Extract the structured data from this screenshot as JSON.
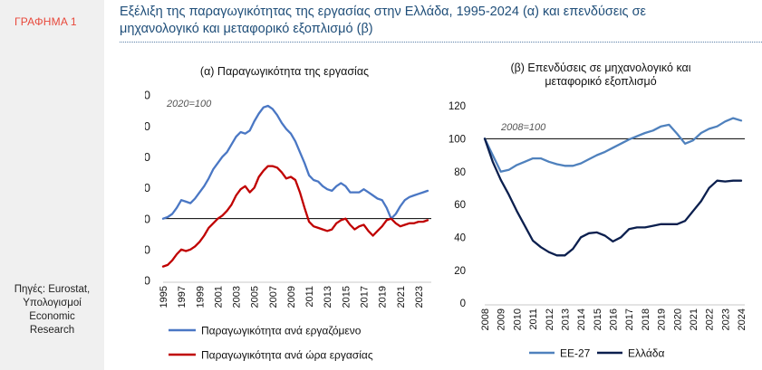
{
  "sidebar": {
    "label": "ΓΡΑΦΗΜΑ 1",
    "sources": [
      "Πηγές: Eurostat,",
      "Υπολογισμοί",
      "Economic",
      "Research"
    ]
  },
  "header": {
    "title_line1": "Εξέλιξη της παραγωγικότητας της εργασίας στην Ελλάδα, 1995-2024 (α) και επενδύσεις σε",
    "title_line2": "μηχανολογικό και μεταφορικό εξοπλισμό (β)"
  },
  "colors": {
    "blue": "#4a77c4",
    "red": "#c00000",
    "navy": "#0b1f4e",
    "lightblue": "#4f81bd"
  },
  "chart_data": [
    {
      "type": "line",
      "title": "(α) Παραγωγικότητα της εργασίας",
      "annotation": "2020=100",
      "ylim": [
        80,
        140
      ],
      "yticks": [
        80,
        90,
        100,
        110,
        120,
        130,
        140
      ],
      "reference_line": 100,
      "xlim": [
        1995,
        2024
      ],
      "xticks": [
        "1995",
        "1997",
        "1999",
        "2001",
        "2003",
        "2005",
        "2007",
        "2009",
        "2011",
        "2013",
        "2015",
        "2017",
        "2019",
        "2021",
        "2023"
      ],
      "legend_position": "bottom",
      "series": [
        {
          "name": "Παραγωγικότητα ανά εργαζόμενο",
          "color": "#4a77c4",
          "x": [
            1995,
            1995.5,
            1996,
            1996.5,
            1997,
            1997.5,
            1998,
            1998.5,
            1999,
            1999.5,
            2000,
            2000.5,
            2001,
            2001.5,
            2002,
            2002.5,
            2003,
            2003.5,
            2004,
            2004.5,
            2005,
            2005.5,
            2006,
            2006.5,
            2007,
            2007.5,
            2008,
            2008.5,
            2009,
            2009.5,
            2010,
            2010.5,
            2011,
            2011.5,
            2012,
            2012.5,
            2013,
            2013.5,
            2014,
            2014.5,
            2015,
            2015.5,
            2016,
            2016.5,
            2017,
            2017.5,
            2018,
            2018.5,
            2019,
            2019.5,
            2020,
            2020.5,
            2021,
            2021.5,
            2022,
            2022.5,
            2023,
            2023.5,
            2024
          ],
          "y": [
            100,
            100.5,
            101.5,
            103.5,
            106,
            105.5,
            105,
            106.5,
            108.5,
            110.5,
            113,
            116,
            118,
            120,
            121.5,
            124,
            126.5,
            128,
            127.5,
            128.5,
            131.5,
            134,
            136,
            136.5,
            135.5,
            133.5,
            131,
            129,
            127.5,
            125,
            121.5,
            118,
            114,
            112.5,
            112,
            110.5,
            109.5,
            109,
            110.5,
            111.5,
            110.5,
            108.5,
            108.5,
            108.5,
            109.5,
            108.5,
            107.5,
            106.5,
            106,
            103.5,
            100,
            101.5,
            104,
            106,
            107,
            107.5,
            108,
            108.5,
            109
          ]
        },
        {
          "name": "Παραγωγικότητα ανά ώρα εργασίας",
          "color": "#c00000",
          "x": [
            1995,
            1995.5,
            1996,
            1996.5,
            1997,
            1997.5,
            1998,
            1998.5,
            1999,
            1999.5,
            2000,
            2000.5,
            2001,
            2001.5,
            2002,
            2002.5,
            2003,
            2003.5,
            2004,
            2004.5,
            2005,
            2005.5,
            2006,
            2006.5,
            2007,
            2007.5,
            2008,
            2008.5,
            2009,
            2009.5,
            2010,
            2010.5,
            2011,
            2011.5,
            2012,
            2012.5,
            2013,
            2013.5,
            2014,
            2014.5,
            2015,
            2015.5,
            2016,
            2016.5,
            2017,
            2017.5,
            2018,
            2018.5,
            2019,
            2019.5,
            2020,
            2020.5,
            2021,
            2021.5,
            2022,
            2022.5,
            2023,
            2023.5,
            2024
          ],
          "y": [
            84.5,
            85,
            86.5,
            88.5,
            90,
            89.5,
            90,
            91,
            92.5,
            94.5,
            97,
            98.5,
            100,
            101,
            102.5,
            104.5,
            107.5,
            109.5,
            110.5,
            108.5,
            110,
            113.5,
            115.5,
            117,
            117,
            116.5,
            115,
            113,
            113.5,
            112.5,
            108.5,
            103.5,
            99,
            97.5,
            97,
            96.5,
            96,
            96.5,
            98.5,
            99.5,
            100,
            98,
            96.5,
            97.5,
            98,
            96,
            94.5,
            96,
            97.5,
            99.5,
            100,
            98.5,
            97.5,
            98,
            98.5,
            98.5,
            99,
            99,
            99.5
          ]
        }
      ]
    },
    {
      "type": "line",
      "title": "(β) Επενδύσεις σε μηχανολογικό και μεταφορικό εξοπλισμό",
      "title_line1": "(β) Επενδύσεις σε μηχανολογικό και",
      "title_line2": "μεταφορικό εξοπλισμό",
      "annotation": "2008=100",
      "ylim": [
        0,
        120
      ],
      "yticks": [
        0,
        20,
        40,
        60,
        80,
        100,
        120
      ],
      "reference_line": 100,
      "xlim": [
        2008,
        2024
      ],
      "xticks": [
        "2008",
        "2009",
        "2010",
        "2011",
        "2012",
        "2013",
        "2014",
        "2015",
        "2016",
        "2017",
        "2018",
        "2019",
        "2020",
        "2021",
        "2022",
        "2023",
        "2024"
      ],
      "legend_position": "bottom",
      "series": [
        {
          "name": "ΕΕ-27",
          "color": "#4f81bd",
          "x": [
            2008,
            2008.5,
            2009,
            2009.5,
            2010,
            2010.5,
            2011,
            2011.5,
            2012,
            2012.5,
            2013,
            2013.5,
            2014,
            2014.5,
            2015,
            2015.5,
            2016,
            2016.5,
            2017,
            2017.5,
            2018,
            2018.5,
            2019,
            2019.5,
            2020,
            2020.5,
            2021,
            2021.5,
            2022,
            2022.5,
            2023,
            2023.5,
            2024
          ],
          "y": [
            100,
            90,
            80,
            81,
            84,
            86,
            88,
            88,
            86,
            84.5,
            83.5,
            83.5,
            85,
            87.5,
            90,
            92,
            94.5,
            97,
            99.5,
            101.5,
            103.5,
            105,
            107.5,
            108.5,
            103,
            97,
            99,
            103.5,
            106,
            107.5,
            110.5,
            112.5,
            111
          ]
        },
        {
          "name": "Ελλάδα",
          "color": "#0b1f4e",
          "x": [
            2008,
            2008.5,
            2009,
            2009.5,
            2010,
            2010.5,
            2011,
            2011.5,
            2012,
            2012.5,
            2013,
            2013.5,
            2014,
            2014.5,
            2015,
            2015.5,
            2016,
            2016.5,
            2017,
            2017.5,
            2018,
            2018.5,
            2019,
            2019.5,
            2020,
            2020.5,
            2021,
            2021.5,
            2022,
            2022.5,
            2023,
            2023.5,
            2024
          ],
          "y": [
            100,
            86,
            75,
            66,
            56,
            47,
            38,
            34,
            31,
            29,
            29,
            33,
            40,
            42.5,
            43,
            41,
            37.5,
            40,
            45,
            46,
            46,
            47,
            48,
            48,
            48,
            50,
            56,
            62,
            70,
            74.5,
            74,
            74.5,
            74.5
          ]
        }
      ]
    }
  ]
}
